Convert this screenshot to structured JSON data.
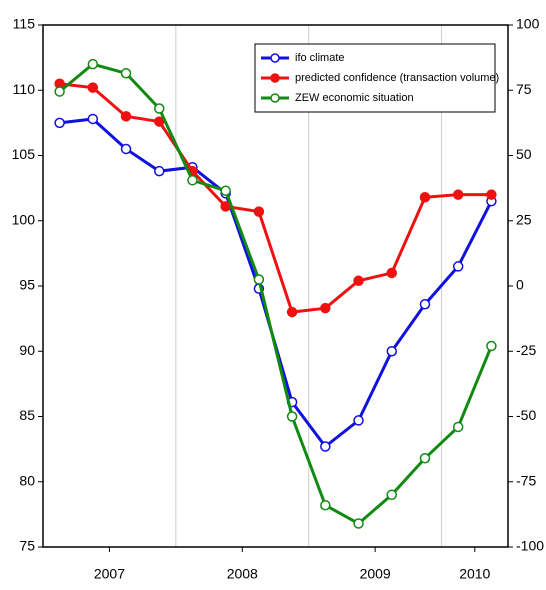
{
  "chart_data": {
    "type": "line",
    "x": [
      2007.125,
      2007.375,
      2007.625,
      2007.875,
      2008.125,
      2008.375,
      2008.625,
      2008.875,
      2009.125,
      2009.375,
      2009.625,
      2009.875,
      2010.125,
      2010.375
    ],
    "series": [
      {
        "name": "ifo climate",
        "color": "#1010e0",
        "values": [
          107.5,
          107.8,
          105.5,
          103.8,
          104.1,
          102.1,
          94.8,
          86.1,
          82.7,
          84.7,
          90.0,
          93.6,
          96.5,
          101.5
        ]
      },
      {
        "name": "predicted confidence (transaction volume)",
        "color": "#f01010",
        "values": [
          110.5,
          110.2,
          108.0,
          107.6,
          103.8,
          101.1,
          100.7,
          93.0,
          93.3,
          95.4,
          96.0,
          101.8,
          102.0,
          102.0
        ]
      },
      {
        "name": "ZEW economic situation",
        "color": "#108a10",
        "axis": "y2",
        "values": [
          74.5,
          85,
          81.5,
          68,
          40.5,
          36.5,
          2.5,
          -50,
          -84,
          -91,
          -80,
          -66,
          -54,
          -23
        ]
      }
    ],
    "xlim": [
      2007,
      2010.5
    ],
    "xticks": [
      {
        "value": 2007.5,
        "label": "2007"
      },
      {
        "value": 2008.5,
        "label": "2008"
      },
      {
        "value": 2009.5,
        "label": "2009"
      },
      {
        "value": 2010.25,
        "label": "2010"
      }
    ],
    "x_grid": [
      2008,
      2009,
      2010
    ],
    "ylim": [
      75,
      115
    ],
    "yticks": [
      75,
      80,
      85,
      90,
      95,
      100,
      105,
      110,
      115
    ],
    "y2lim": [
      -100,
      100
    ],
    "y2ticks": [
      -100,
      -75,
      -50,
      -25,
      0,
      25,
      50,
      75,
      100
    ],
    "legend": "top-right"
  }
}
